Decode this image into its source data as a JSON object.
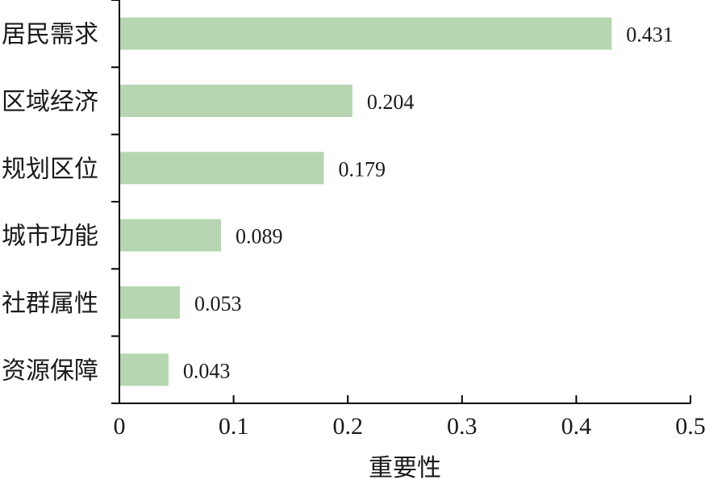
{
  "chart_data": {
    "type": "bar",
    "orientation": "horizontal",
    "categories": [
      "居民需求",
      "区域经济",
      "规划区位",
      "城市功能",
      "社群属性",
      "资源保障"
    ],
    "values": [
      0.431,
      0.204,
      0.179,
      0.089,
      0.053,
      0.043
    ],
    "value_labels": [
      "0.431",
      "0.204",
      "0.179",
      "0.089",
      "0.053",
      "0.043"
    ],
    "xlabel": "重要性",
    "ylabel": "",
    "xlim": [
      0,
      0.5
    ],
    "xticks": [
      0,
      0.1,
      0.2,
      0.3,
      0.4,
      0.5
    ],
    "xtick_labels": [
      "0",
      "0.1",
      "0.2",
      "0.3",
      "0.4",
      "0.5"
    ],
    "grid": false,
    "bar_color": "#b5d6b0"
  }
}
